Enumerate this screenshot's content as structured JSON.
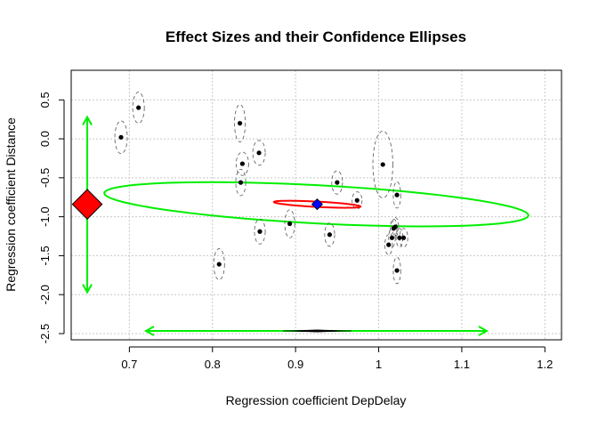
{
  "chart_data": {
    "type": "scatter",
    "title": "Effect Sizes and their Confidence Ellipses",
    "xlabel": "Regression coefficient DepDelay",
    "ylabel": "Regression coefficient Distance",
    "xlim": [
      0.63,
      1.22
    ],
    "ylim": [
      -2.58,
      0.88
    ],
    "x_ticks": [
      0.7,
      0.8,
      0.9,
      1.0,
      1.1,
      1.2
    ],
    "x_tick_labels": [
      "0.7",
      "0.8",
      "0.9",
      "1",
      "1.1",
      "1.2"
    ],
    "y_ticks": [
      0.5,
      0.0,
      -0.5,
      -1.0,
      -1.5,
      -2.0,
      -2.5
    ],
    "y_tick_labels": [
      "0.5",
      "0.0",
      "-0.5",
      "-1.0",
      "-1.5",
      "-2.0",
      "-2.5"
    ],
    "grid": true,
    "colors": {
      "points": "#000000",
      "study_ellipse": "#555555",
      "overall_ellipse": "#ff0000",
      "pooled_ellipse": "#00ee00",
      "overall_marker": "#0000ff",
      "marginal_diamond": "#ff0000"
    },
    "points": [
      {
        "x": 0.69,
        "y": 0.02,
        "sx": 0.0075,
        "sy": 0.21
      },
      {
        "x": 0.711,
        "y": 0.4,
        "sx": 0.007,
        "sy": 0.2
      },
      {
        "x": 0.808,
        "y": -1.61,
        "sx": 0.0065,
        "sy": 0.2
      },
      {
        "x": 0.833,
        "y": 0.2,
        "sx": 0.0065,
        "sy": 0.24
      },
      {
        "x": 0.836,
        "y": -0.32,
        "sx": 0.0075,
        "sy": 0.15
      },
      {
        "x": 0.834,
        "y": -0.56,
        "sx": 0.006,
        "sy": 0.17
      },
      {
        "x": 0.856,
        "y": -0.18,
        "sx": 0.0075,
        "sy": 0.16
      },
      {
        "x": 0.857,
        "y": -1.19,
        "sx": 0.0065,
        "sy": 0.16
      },
      {
        "x": 0.893,
        "y": -1.09,
        "sx": 0.006,
        "sy": 0.18
      },
      {
        "x": 0.941,
        "y": -1.23,
        "sx": 0.006,
        "sy": 0.15
      },
      {
        "x": 0.95,
        "y": -0.56,
        "sx": 0.0065,
        "sy": 0.15
      },
      {
        "x": 0.974,
        "y": -0.79,
        "sx": 0.006,
        "sy": 0.11
      },
      {
        "x": 1.005,
        "y": -0.33,
        "sx": 0.012,
        "sy": 0.43
      },
      {
        "x": 1.012,
        "y": -1.36,
        "sx": 0.0045,
        "sy": 0.13
      },
      {
        "x": 1.016,
        "y": -1.27,
        "sx": 0.004,
        "sy": 0.12
      },
      {
        "x": 1.018,
        "y": -1.15,
        "sx": 0.004,
        "sy": 0.12
      },
      {
        "x": 1.02,
        "y": -1.13,
        "sx": 0.004,
        "sy": 0.12
      },
      {
        "x": 1.022,
        "y": -0.72,
        "sx": 0.0045,
        "sy": 0.17
      },
      {
        "x": 1.022,
        "y": -1.69,
        "sx": 0.0045,
        "sy": 0.17
      },
      {
        "x": 1.025,
        "y": -1.27,
        "sx": 0.004,
        "sy": 0.12
      },
      {
        "x": 1.03,
        "y": -1.27,
        "sx": 0.005,
        "sy": 0.12
      }
    ],
    "overall_estimate": {
      "x": 0.926,
      "y": -0.84,
      "ellipse": {
        "cx": 0.926,
        "cy": -0.84,
        "ax": 0.0545,
        "ay": 0.105,
        "major_angle_deg": 162,
        "ratio": 0.313
      }
    },
    "pooled_ellipse": {
      "cx": 0.925,
      "cy": -0.84,
      "ax": 0.2705,
      "ay": 0.495,
      "major_angle_deg": 158,
      "ratio": 0.468
    },
    "x_marginal_interval": [
      0.72,
      1.13
    ],
    "y_marginal_interval": [
      -1.97,
      0.28
    ],
    "x_marginal_diamond": {
      "x": [
        0.885,
        0.967
      ],
      "center": 0.926
    },
    "y_marginal_diamond": {
      "y": [
        -1.03,
        -0.65
      ],
      "center": -0.84
    }
  }
}
